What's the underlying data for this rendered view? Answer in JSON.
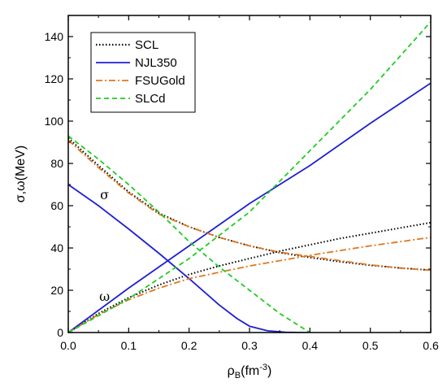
{
  "chart_data": {
    "type": "line",
    "xlabel": "ρB(fm-3)",
    "xlabel_main": "ρ",
    "xlabel_sub": "B",
    "xlabel_unit_pre": "(fm",
    "xlabel_unit_sup": "-3",
    "xlabel_unit_post": ")",
    "ylabel": "σ,ω(MeV)",
    "xlim": [
      0.0,
      0.6
    ],
    "ylim": [
      0,
      150
    ],
    "xticks": [
      0.0,
      0.1,
      0.2,
      0.3,
      0.4,
      0.5,
      0.6
    ],
    "xtick_labels": [
      "0.0",
      "0.1",
      "0.2",
      "0.3",
      "0.4",
      "0.5",
      "0.6"
    ],
    "yticks": [
      0,
      20,
      40,
      60,
      80,
      100,
      120,
      140
    ],
    "ytick_labels": [
      "0",
      "20",
      "40",
      "60",
      "80",
      "100",
      "120",
      "140"
    ],
    "legend_position": "top-left",
    "annotations": [
      {
        "text": "σ",
        "x": 0.06,
        "y": 63
      },
      {
        "text": "ω",
        "x": 0.06,
        "y": 15
      }
    ],
    "series": [
      {
        "name": "SCL",
        "color": "#000000",
        "dash": "dotted",
        "segments": [
          {
            "x": [
              0.0,
              0.05,
              0.1,
              0.15,
              0.2,
              0.25,
              0.3,
              0.35,
              0.4,
              0.45,
              0.5,
              0.55,
              0.6
            ],
            "y": [
              92,
              79,
              66.5,
              56.5,
              50,
              45,
              41,
              37.8,
              35.5,
              33.5,
              31.8,
              30.5,
              29.5
            ]
          },
          {
            "x": [
              0.0,
              0.05,
              0.1,
              0.15,
              0.2,
              0.25,
              0.3,
              0.35,
              0.4,
              0.45,
              0.5,
              0.55,
              0.6
            ],
            "y": [
              0,
              9,
              16.5,
              22.5,
              27.5,
              31.5,
              35,
              38.5,
              41.5,
              44.5,
              47,
              49.5,
              52
            ]
          }
        ]
      },
      {
        "name": "NJL350",
        "color": "#1f1fd0",
        "dash": "solid",
        "segments": [
          {
            "x": [
              0.0,
              0.05,
              0.1,
              0.15,
              0.2,
              0.25,
              0.28,
              0.3,
              0.33,
              0.36,
              0.39,
              0.4
            ],
            "y": [
              70,
              60,
              49,
              37.5,
              25.5,
              13,
              6.5,
              3,
              0.8,
              0.1,
              0,
              0
            ]
          },
          {
            "x": [
              0.0,
              0.1,
              0.2,
              0.3,
              0.4,
              0.5,
              0.6
            ],
            "y": [
              0,
              21,
              41,
              61,
              79,
              99,
              118
            ]
          }
        ]
      },
      {
        "name": "FSUGold",
        "color": "#e07820",
        "dash": "dashdot",
        "segments": [
          {
            "x": [
              0.0,
              0.05,
              0.1,
              0.15,
              0.2,
              0.25,
              0.3,
              0.35,
              0.4,
              0.45,
              0.5,
              0.55,
              0.6
            ],
            "y": [
              91,
              78,
              66,
              56,
              50,
              45,
              41,
              38,
              36,
              34,
              32,
              30.5,
              29.5
            ]
          },
          {
            "x": [
              0.0,
              0.05,
              0.1,
              0.15,
              0.2,
              0.25,
              0.3,
              0.35,
              0.4,
              0.45,
              0.5,
              0.55,
              0.6
            ],
            "y": [
              0,
              8.5,
              15.5,
              21,
              25.5,
              28.5,
              31.5,
              34,
              36.5,
              38.8,
              41,
              43,
              45
            ]
          }
        ]
      },
      {
        "name": "SLCd",
        "color": "#22cc22",
        "dash": "dashed",
        "segments": [
          {
            "x": [
              0.0,
              0.05,
              0.1,
              0.15,
              0.2,
              0.25,
              0.3,
              0.35,
              0.4
            ],
            "y": [
              93,
              82,
              70,
              57,
              43,
              31,
              20,
              9,
              0
            ]
          },
          {
            "x": [
              0.0,
              0.1,
              0.2,
              0.3,
              0.4,
              0.5,
              0.6
            ],
            "y": [
              0,
              16,
              35,
              57,
              86,
              115,
              147
            ]
          }
        ]
      }
    ]
  }
}
